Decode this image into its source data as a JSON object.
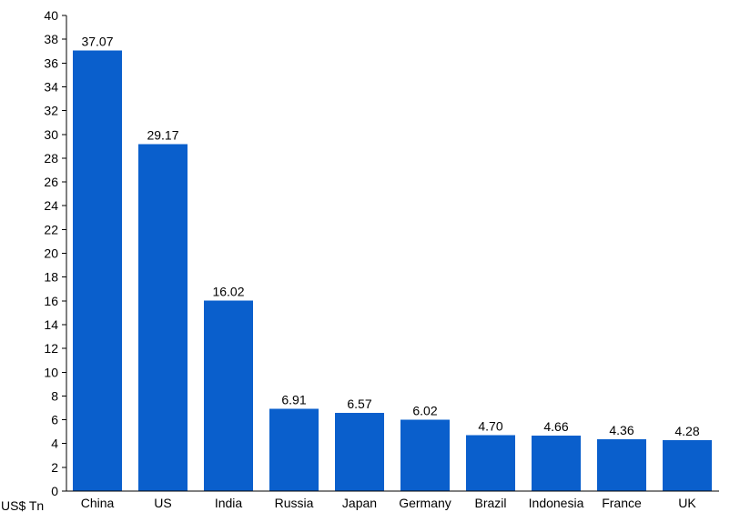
{
  "chart_data": {
    "type": "bar",
    "ylabel": "US$ Tn",
    "categories": [
      "China",
      "US",
      "India",
      "Russia",
      "Japan",
      "Germany",
      "Brazil",
      "Indonesia",
      "France",
      "UK"
    ],
    "values": [
      37.07,
      29.17,
      16.02,
      6.91,
      6.57,
      6.02,
      4.7,
      4.66,
      4.36,
      4.28
    ],
    "data_labels": [
      "37.07",
      "29.17",
      "16.02",
      "6.91",
      "6.57",
      "6.02",
      "4.70",
      "4.66",
      "4.36",
      "4.28"
    ],
    "ylim": [
      0,
      40
    ],
    "yticks": [
      "0",
      "2",
      "4",
      "6",
      "8",
      "10",
      "12",
      "14",
      "16",
      "18",
      "20",
      "22",
      "24",
      "26",
      "28",
      "30",
      "32",
      "34",
      "36",
      "38",
      "40"
    ],
    "grid": false,
    "legend": "none",
    "bar_color": "#0a5fcc"
  }
}
